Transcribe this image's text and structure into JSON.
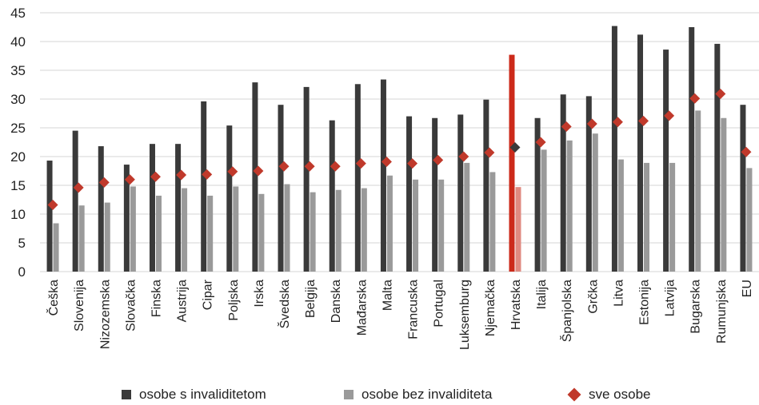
{
  "chart_data": {
    "type": "bar",
    "categories": [
      "Češka",
      "Slovenija",
      "Nizozemska",
      "Slovačka",
      "Finska",
      "Austrija",
      "Cipar",
      "Poljska",
      "Irska",
      "Švedska",
      "Belgija",
      "Danska",
      "Mađarska",
      "Malta",
      "Francuska",
      "Portugal",
      "Luksemburg",
      "Njemačka",
      "Hrvatska",
      "Italija",
      "Španjolska",
      "Grčka",
      "Litva",
      "Estonija",
      "Latvija",
      "Bugarska",
      "Rumunjska",
      "EU"
    ],
    "series": [
      {
        "name": "osobe s invaliditetom",
        "kind": "bar",
        "color": "#3a3a3a",
        "values": [
          19.3,
          24.5,
          21.8,
          18.6,
          22.2,
          22.2,
          29.6,
          25.4,
          32.9,
          29.0,
          32.1,
          26.3,
          32.6,
          33.4,
          27.0,
          26.7,
          27.3,
          29.9,
          37.7,
          26.7,
          30.8,
          30.5,
          42.7,
          41.2,
          38.6,
          42.5,
          39.6,
          29.0
        ]
      },
      {
        "name": "osobe bez invaliditeta",
        "kind": "bar",
        "color": "#9a9a9a",
        "values": [
          8.4,
          11.5,
          12.0,
          14.8,
          13.2,
          14.5,
          13.2,
          14.8,
          13.5,
          15.2,
          13.8,
          14.2,
          14.5,
          16.7,
          16.0,
          16.0,
          18.9,
          17.3,
          14.7,
          21.2,
          22.8,
          24.0,
          19.5,
          18.9,
          18.9,
          28.0,
          26.7,
          18.0
        ]
      },
      {
        "name": "sve osobe",
        "kind": "marker",
        "color": "#c0392b",
        "values": [
          11.6,
          14.6,
          15.5,
          16.0,
          16.5,
          16.8,
          16.9,
          17.4,
          17.5,
          18.3,
          18.3,
          18.3,
          18.8,
          19.1,
          18.8,
          19.4,
          20.0,
          20.7,
          21.6,
          22.5,
          25.2,
          25.7,
          26.0,
          26.2,
          27.1,
          30.1,
          30.9,
          20.8
        ]
      }
    ],
    "highlight": {
      "category": "Hrvatska",
      "bar_color": "#cc2a1a",
      "bar2_color": "#e08a80",
      "marker_color": "#3a3a3a"
    },
    "ylim": [
      0,
      45
    ],
    "yticks": [
      0,
      5,
      10,
      15,
      20,
      25,
      30,
      35,
      40,
      45
    ],
    "grid": true,
    "legend_position": "bottom"
  },
  "legend": {
    "items": [
      {
        "label": "osobe s invaliditetom",
        "color": "#3a3a3a",
        "shape": "square"
      },
      {
        "label": "osobe bez invaliditeta",
        "color": "#9a9a9a",
        "shape": "square"
      },
      {
        "label": "sve osobe",
        "color": "#c0392b",
        "shape": "diamond"
      }
    ]
  }
}
